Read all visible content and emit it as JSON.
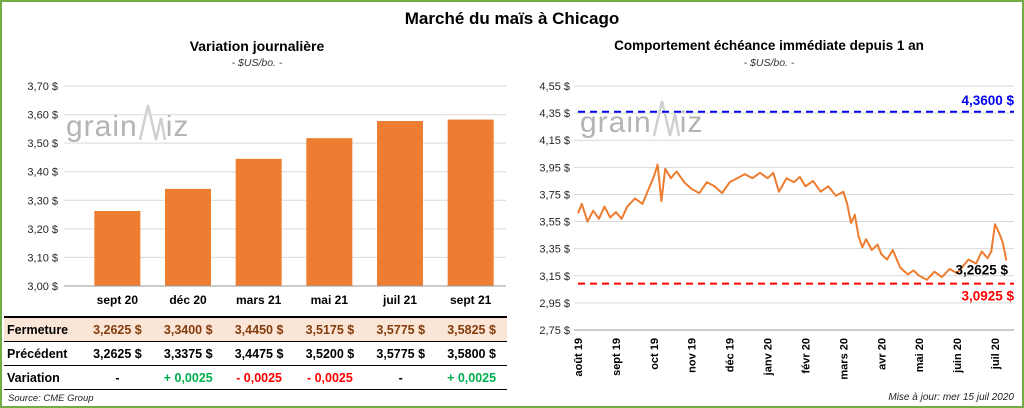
{
  "page": {
    "title": "Marché du maïs à Chicago",
    "source_note": "Source: CME Group",
    "update_note": "Mise à jour: mer 15 juil 2020",
    "watermark": {
      "part1": "grain",
      "part2": "iz"
    }
  },
  "colors": {
    "bar_orange": "#ED7D31",
    "line_orange": "#ED7D31",
    "resistance_blue": "#0000EE",
    "support_red": "#FF0000",
    "gain_green": "#00B050",
    "loss_red": "#FF0000",
    "highlight_row_bg": "#FBE5D6",
    "highlight_row_text": "#843C0C",
    "page_border_green": "#70AD47",
    "gridline_gray": "#D9D9D9"
  },
  "left_panel": {
    "title": "Variation journalière",
    "subtitle": "- $US/bo. -"
  },
  "right_panel": {
    "title": "Comportement échéance immédiate depuis 1 an",
    "subtitle": "- $US/bo. -"
  },
  "table": {
    "rows": [
      {
        "label": "Fermeture",
        "style": "highlight",
        "values": [
          "3,2625 $",
          "3,3400 $",
          "3,4450 $",
          "3,5175 $",
          "3,5775 $",
          "3,5825 $"
        ]
      },
      {
        "label": "Précédent",
        "style": "normal",
        "values": [
          "3,2625 $",
          "3,3375 $",
          "3,4475 $",
          "3,5200 $",
          "3,5775 $",
          "3,5800 $"
        ]
      },
      {
        "label": "Variation",
        "style": "variation",
        "values": [
          "-",
          "+ 0,0025",
          "- 0,0025",
          "- 0,0025",
          "-",
          "+ 0,0025"
        ],
        "value_styles": [
          "neutral",
          "up",
          "down",
          "down",
          "neutral",
          "up"
        ]
      }
    ]
  },
  "chart_data": [
    {
      "type": "bar",
      "title": "Variation journalière",
      "subtitle": "- $US/bo. -",
      "categories": [
        "sept 20",
        "déc 20",
        "mars 21",
        "mai 21",
        "juil 21",
        "sept 21"
      ],
      "values": [
        3.2625,
        3.34,
        3.445,
        3.5175,
        3.5775,
        3.5825
      ],
      "ylim": [
        3.0,
        3.7
      ],
      "ytick_values": [
        3.0,
        3.1,
        3.2,
        3.3,
        3.4,
        3.5,
        3.6,
        3.7
      ],
      "ytick_labels": [
        "3,00 $",
        "3,10 $",
        "3,20 $",
        "3,30 $",
        "3,40 $",
        "3,50 $",
        "3,60 $",
        "3,70 $"
      ],
      "grid": true,
      "bar_color_key": "bar_orange"
    },
    {
      "type": "line",
      "title": "Comportement échéance immédiate depuis 1 an",
      "subtitle": "- $US/bo. -",
      "x_labels": [
        "août 19",
        "sept 19",
        "oct 19",
        "nov 19",
        "déc 19",
        "janv 20",
        "févr 20",
        "mars 20",
        "avr 20",
        "mai 20",
        "juin 20",
        "juil 20"
      ],
      "x_range": [
        0,
        11.5
      ],
      "ylim": [
        2.75,
        4.55
      ],
      "ytick_values": [
        2.75,
        2.95,
        3.15,
        3.35,
        3.55,
        3.75,
        3.95,
        4.15,
        4.35,
        4.55
      ],
      "ytick_labels": [
        "2,75 $",
        "2,95 $",
        "3,15 $",
        "3,35 $",
        "3,55 $",
        "3,75 $",
        "3,95 $",
        "4,15 $",
        "4,35 $",
        "4,55 $"
      ],
      "grid": true,
      "series": [
        {
          "name": "échéance immédiate",
          "color_key": "line_orange",
          "points": [
            [
              0,
              3.61
            ],
            [
              0.1,
              3.68
            ],
            [
              0.25,
              3.55
            ],
            [
              0.4,
              3.63
            ],
            [
              0.55,
              3.57
            ],
            [
              0.7,
              3.66
            ],
            [
              0.85,
              3.58
            ],
            [
              1,
              3.62
            ],
            [
              1.15,
              3.57
            ],
            [
              1.3,
              3.66
            ],
            [
              1.5,
              3.72
            ],
            [
              1.7,
              3.68
            ],
            [
              1.85,
              3.78
            ],
            [
              2,
              3.88
            ],
            [
              2.1,
              3.97
            ],
            [
              2.2,
              3.7
            ],
            [
              2.3,
              3.94
            ],
            [
              2.45,
              3.87
            ],
            [
              2.6,
              3.92
            ],
            [
              2.8,
              3.84
            ],
            [
              3,
              3.79
            ],
            [
              3.2,
              3.76
            ],
            [
              3.4,
              3.84
            ],
            [
              3.6,
              3.81
            ],
            [
              3.8,
              3.76
            ],
            [
              4,
              3.84
            ],
            [
              4.2,
              3.87
            ],
            [
              4.4,
              3.9
            ],
            [
              4.6,
              3.87
            ],
            [
              4.8,
              3.91
            ],
            [
              5,
              3.87
            ],
            [
              5.15,
              3.91
            ],
            [
              5.3,
              3.77
            ],
            [
              5.5,
              3.87
            ],
            [
              5.7,
              3.84
            ],
            [
              5.85,
              3.88
            ],
            [
              6,
              3.81
            ],
            [
              6.2,
              3.85
            ],
            [
              6.4,
              3.77
            ],
            [
              6.6,
              3.81
            ],
            [
              6.8,
              3.74
            ],
            [
              7,
              3.77
            ],
            [
              7.1,
              3.68
            ],
            [
              7.2,
              3.54
            ],
            [
              7.3,
              3.6
            ],
            [
              7.4,
              3.44
            ],
            [
              7.5,
              3.36
            ],
            [
              7.6,
              3.42
            ],
            [
              7.75,
              3.34
            ],
            [
              7.9,
              3.38
            ],
            [
              8,
              3.31
            ],
            [
              8.15,
              3.27
            ],
            [
              8.3,
              3.34
            ],
            [
              8.5,
              3.21
            ],
            [
              8.7,
              3.16
            ],
            [
              8.85,
              3.19
            ],
            [
              9,
              3.15
            ],
            [
              9.2,
              3.12
            ],
            [
              9.4,
              3.18
            ],
            [
              9.6,
              3.14
            ],
            [
              9.8,
              3.2
            ],
            [
              10,
              3.17
            ],
            [
              10.15,
              3.22
            ],
            [
              10.3,
              3.27
            ],
            [
              10.5,
              3.24
            ],
            [
              10.65,
              3.33
            ],
            [
              10.8,
              3.28
            ],
            [
              10.9,
              3.33
            ],
            [
              11,
              3.53
            ],
            [
              11.1,
              3.47
            ],
            [
              11.2,
              3.4
            ],
            [
              11.3,
              3.2625
            ]
          ]
        }
      ],
      "reference_lines": [
        {
          "value": 4.36,
          "label": "4,3600 $",
          "color_key": "resistance_blue",
          "position": "above"
        },
        {
          "value": 3.0925,
          "label": "3,0925 $",
          "color_key": "support_red",
          "position": "below"
        }
      ],
      "last_value_label": {
        "text": "3,2625 $",
        "value": 3.2625
      }
    }
  ]
}
